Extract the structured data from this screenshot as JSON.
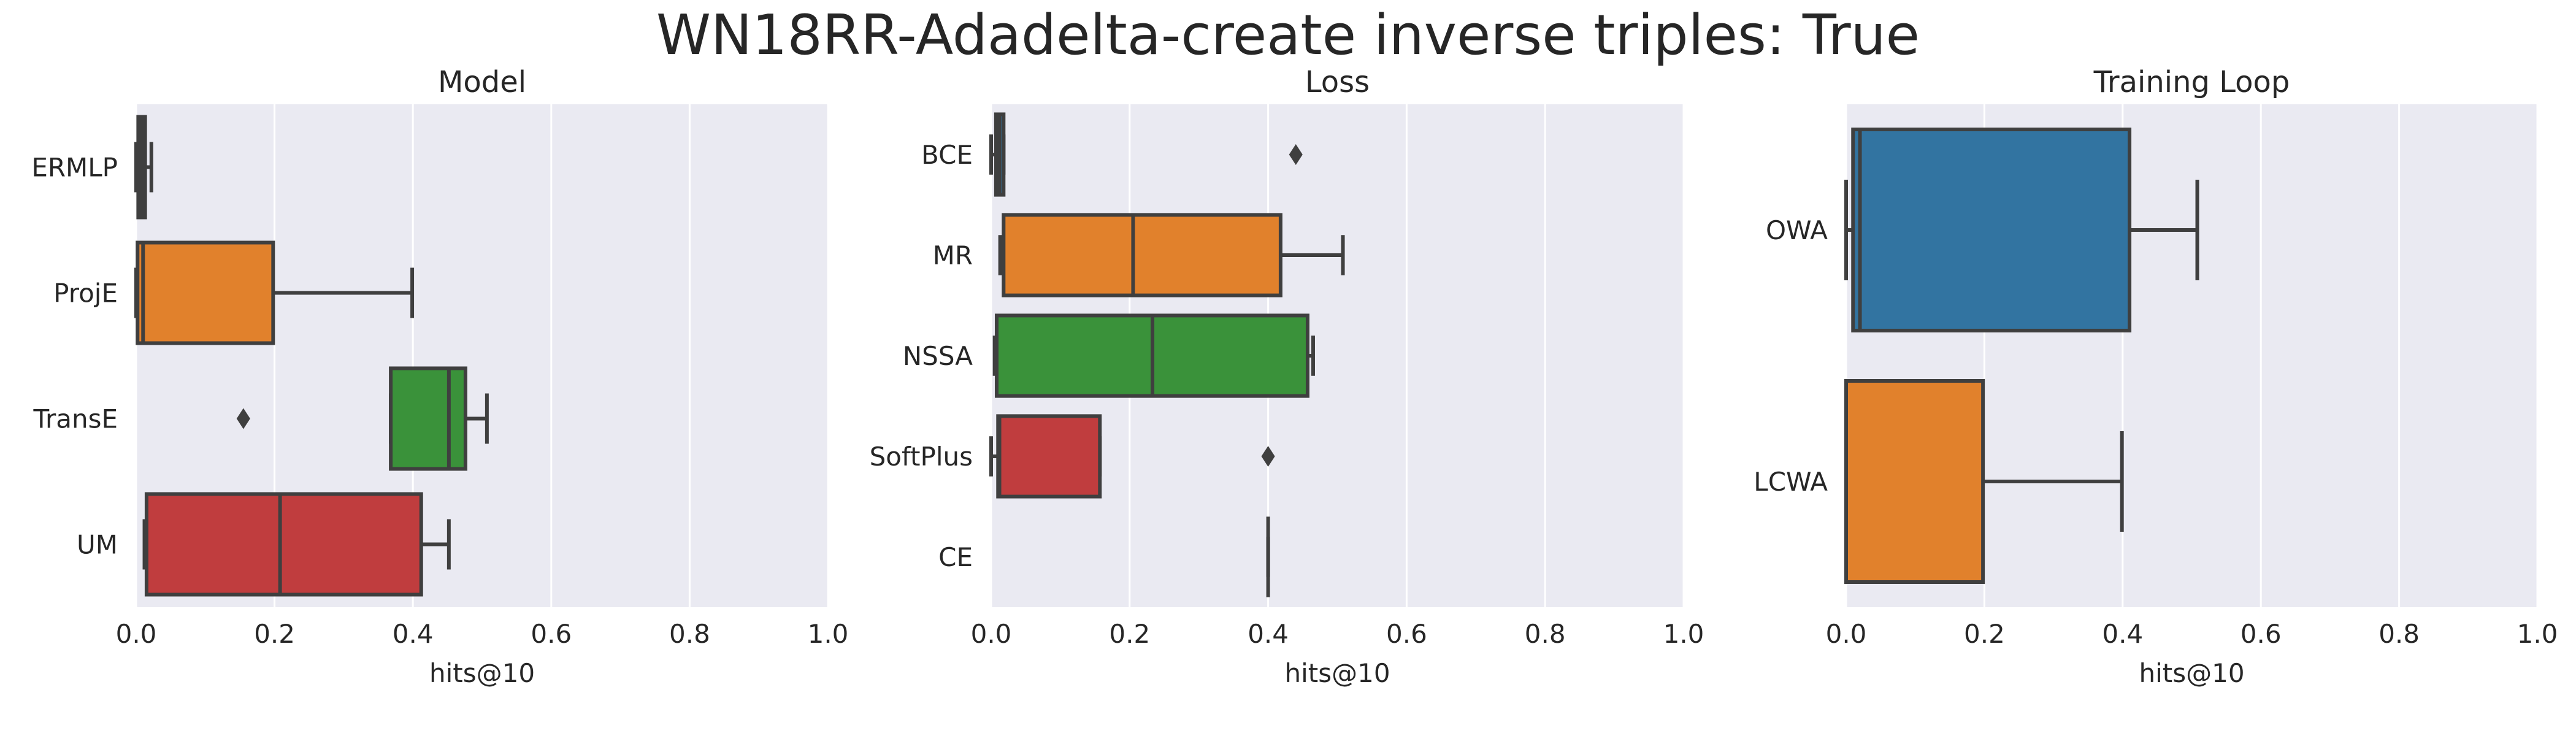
{
  "suptitle": "WN18RR-Adadelta-create inverse triples: True",
  "chart_data": [
    {
      "type": "boxplot",
      "orientation": "horizontal",
      "title": "Model",
      "xlabel": "hits@10",
      "ylabel": "",
      "xlim": [
        0,
        1.0
      ],
      "xticks": [
        "0.0",
        "0.2",
        "0.4",
        "0.6",
        "0.8",
        "1.0"
      ],
      "grid": true,
      "categories": [
        "ERMLP",
        "ProjE",
        "TransE",
        "UM"
      ],
      "boxes": [
        {
          "category": "ERMLP",
          "color": "#3274a1",
          "whislo": 0.0,
          "q1": 0.003,
          "median": 0.008,
          "q3": 0.013,
          "whishi": 0.022,
          "fliers": []
        },
        {
          "category": "ProjE",
          "color": "#e1812c",
          "whislo": 0.0,
          "q1": 0.002,
          "median": 0.01,
          "q3": 0.198,
          "whishi": 0.399,
          "fliers": []
        },
        {
          "category": "TransE",
          "color": "#3a923a",
          "whislo": 0.368,
          "q1": 0.368,
          "median": 0.452,
          "q3": 0.476,
          "whishi": 0.507,
          "fliers": [
            0.155
          ]
        },
        {
          "category": "UM",
          "color": "#c03d3e",
          "whislo": 0.012,
          "q1": 0.015,
          "median": 0.208,
          "q3": 0.412,
          "whishi": 0.452,
          "fliers": []
        }
      ]
    },
    {
      "type": "boxplot",
      "orientation": "horizontal",
      "title": "Loss",
      "xlabel": "hits@10",
      "ylabel": "",
      "xlim": [
        0,
        1.0
      ],
      "xticks": [
        "0.0",
        "0.2",
        "0.4",
        "0.6",
        "0.8",
        "1.0"
      ],
      "grid": true,
      "categories": [
        "BCE",
        "MR",
        "NSSA",
        "SoftPlus",
        "CE"
      ],
      "boxes": [
        {
          "category": "BCE",
          "color": "#3274a1",
          "whislo": 0.0,
          "q1": 0.007,
          "median": 0.012,
          "q3": 0.018,
          "whishi": 0.018,
          "fliers": [
            0.44
          ]
        },
        {
          "category": "MR",
          "color": "#e1812c",
          "whislo": 0.013,
          "q1": 0.018,
          "median": 0.205,
          "q3": 0.418,
          "whishi": 0.508,
          "fliers": []
        },
        {
          "category": "NSSA",
          "color": "#3a923a",
          "whislo": 0.005,
          "q1": 0.008,
          "median": 0.233,
          "q3": 0.457,
          "whishi": 0.465,
          "fliers": []
        },
        {
          "category": "SoftPlus",
          "color": "#c03d3e",
          "whislo": 0.0,
          "q1": 0.01,
          "median": 0.012,
          "q3": 0.157,
          "whishi": 0.157,
          "fliers": [
            0.4
          ]
        },
        {
          "category": "CE",
          "color": "#9372b2",
          "whislo": 0.4,
          "q1": 0.4,
          "median": 0.4,
          "q3": 0.4,
          "whishi": 0.4,
          "fliers": []
        }
      ]
    },
    {
      "type": "boxplot",
      "orientation": "horizontal",
      "title": "Training Loop",
      "xlabel": "hits@10",
      "ylabel": "",
      "xlim": [
        0,
        1.0
      ],
      "xticks": [
        "0.0",
        "0.2",
        "0.4",
        "0.6",
        "0.8",
        "1.0"
      ],
      "grid": true,
      "categories": [
        "OWA",
        "LCWA"
      ],
      "boxes": [
        {
          "category": "OWA",
          "color": "#3274a1",
          "whislo": 0.0,
          "q1": 0.01,
          "median": 0.02,
          "q3": 0.41,
          "whishi": 0.508,
          "fliers": []
        },
        {
          "category": "LCWA",
          "color": "#e1812c",
          "whislo": 0.0,
          "q1": 0.0,
          "median": 0.0,
          "q3": 0.198,
          "whishi": 0.399,
          "fliers": []
        }
      ]
    }
  ]
}
